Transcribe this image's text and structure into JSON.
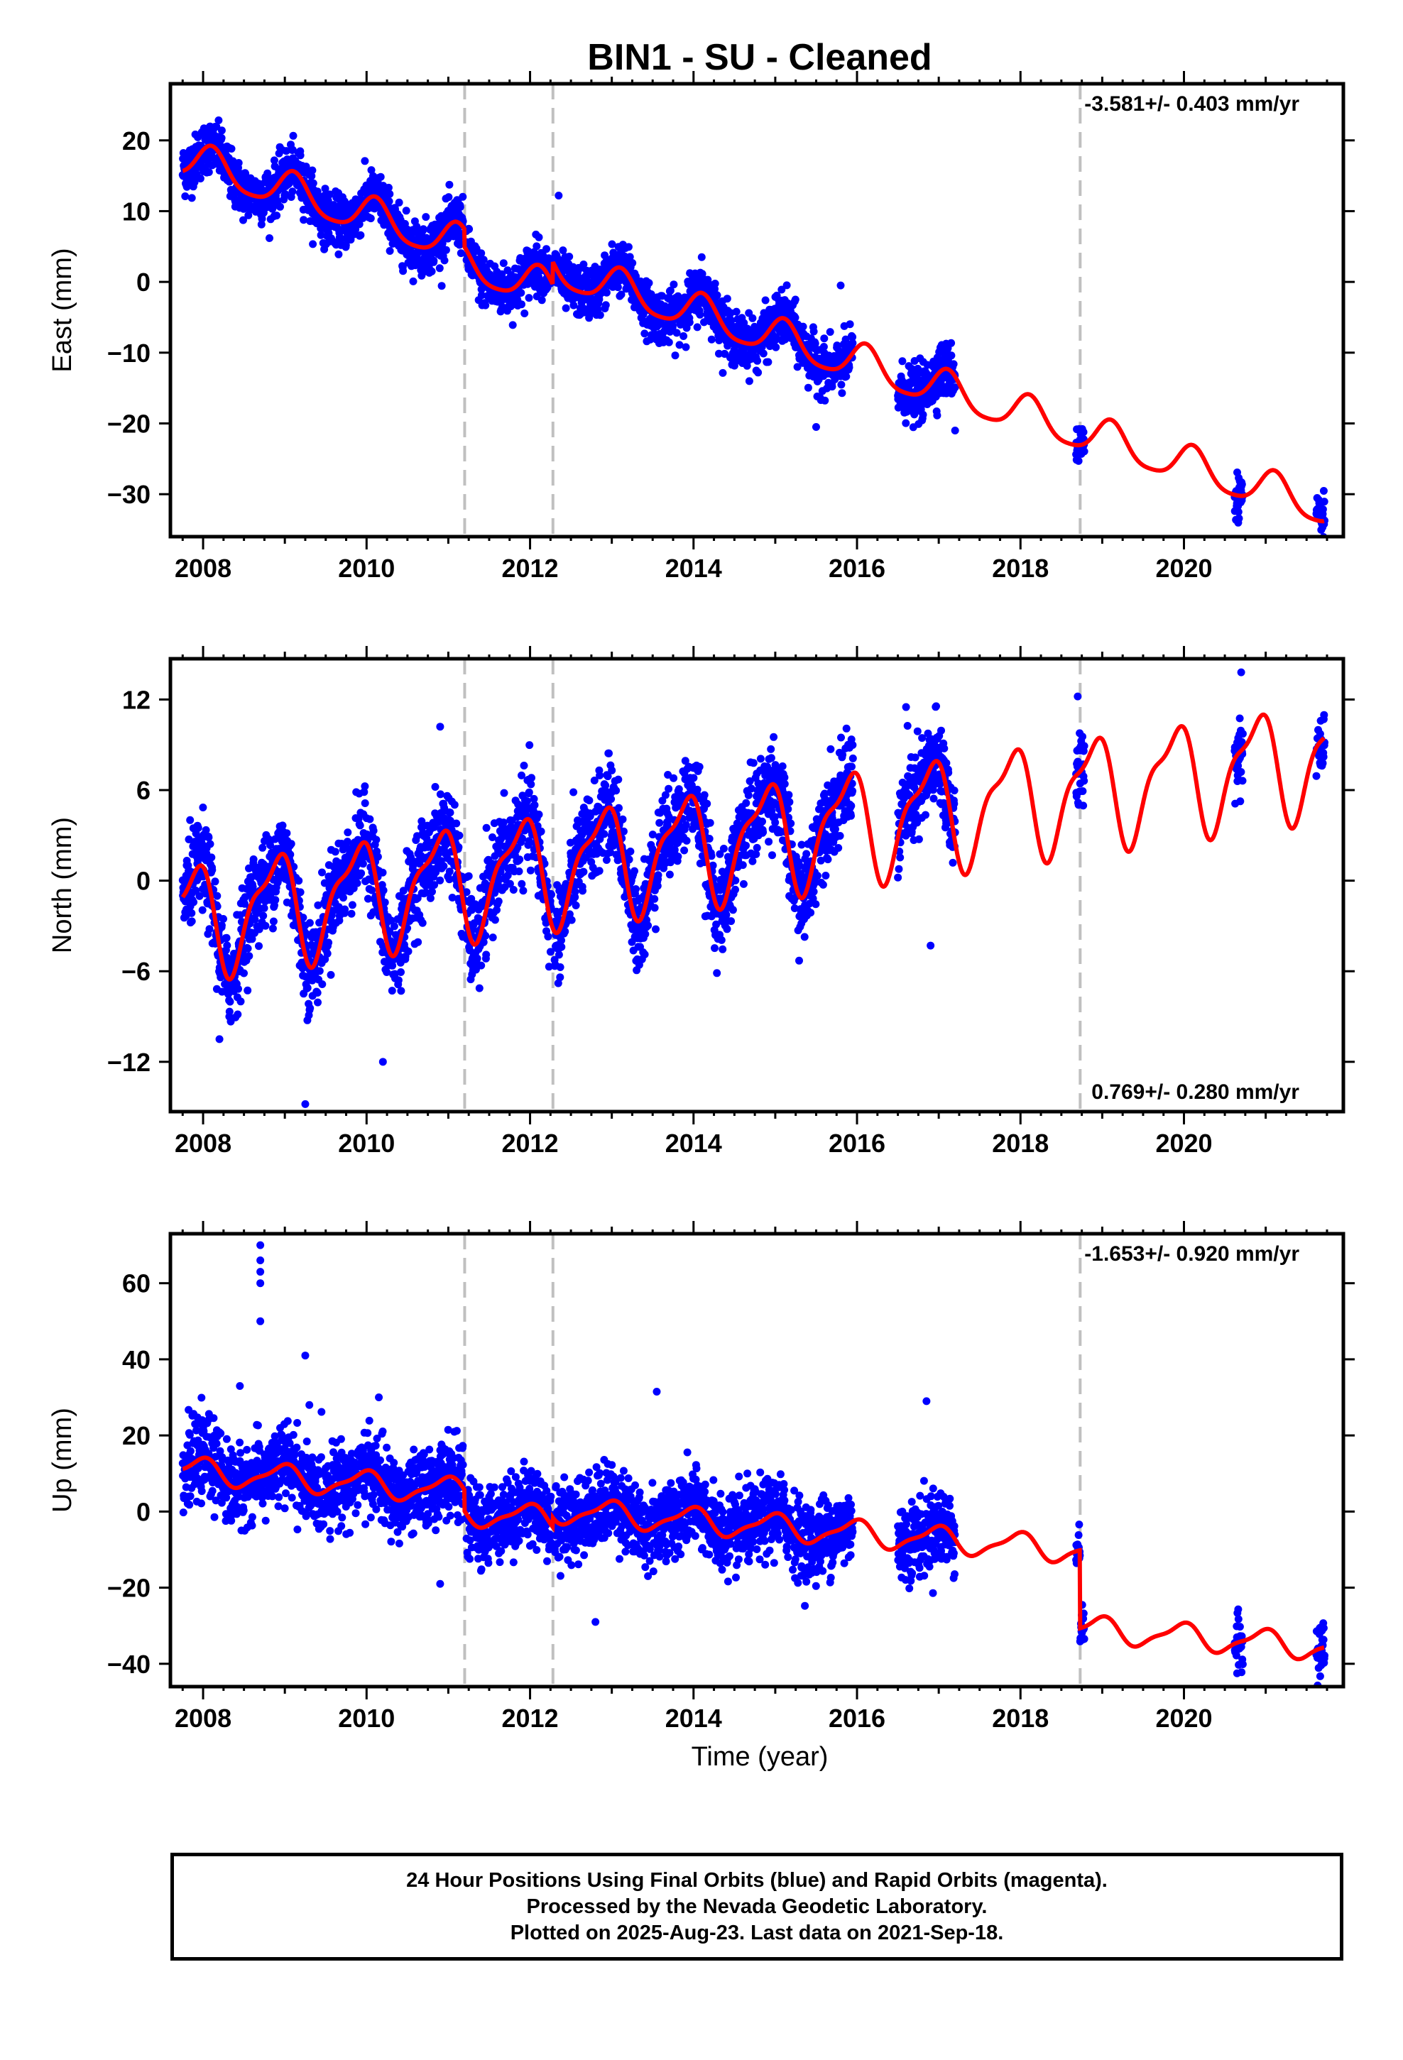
{
  "title": "BIN1  - SU - Cleaned",
  "xlabel": "Time (year)",
  "xticks": [
    2008,
    2010,
    2012,
    2014,
    2016,
    2018,
    2020
  ],
  "xlim": [
    2007.6,
    2021.95
  ],
  "colors": {
    "points": "#0000ff",
    "model": "#ff0000",
    "breaks": "#c0c0c0",
    "frame": "#000000"
  },
  "breaks": [
    2011.2,
    2012.28,
    2018.73
  ],
  "caption": [
    "24 Hour Positions Using Final Orbits (blue) and Rapid Orbits (magenta).",
    "Processed by the Nevada Geodetic Laboratory.",
    "Plotted on 2025-Aug-23. Last data on 2021-Sep-18."
  ],
  "chart_data": [
    {
      "type": "scatter",
      "name": "East",
      "ylabel": "East (mm)",
      "ylim": [
        -36,
        28
      ],
      "yticks": [
        20,
        10,
        0,
        -10,
        -20,
        -30
      ],
      "rate": "-3.581+/- 0.403 mm/yr",
      "rate_position": "top-right",
      "grid": false,
      "model": {
        "velocity": -3.581,
        "offset": 16.5,
        "ref_year": 2008.0,
        "annual_amp": 2.6,
        "annual_phase": 0.9,
        "semi_amp": 0.5,
        "semi_phase": 0.2,
        "steps": [
          {
            "year": 2011.2,
            "size": -2.5
          },
          {
            "year": 2012.28,
            "size": 3.2
          }
        ]
      },
      "segments": [
        {
          "start": 2007.75,
          "end": 2011.18,
          "noise": 1.8
        },
        {
          "start": 2011.22,
          "end": 2012.26,
          "noise": 1.8
        },
        {
          "start": 2012.3,
          "end": 2015.95,
          "noise": 1.8
        },
        {
          "start": 2016.5,
          "end": 2017.2,
          "noise": 1.9
        },
        {
          "start": 2018.68,
          "end": 2018.78,
          "noise": 1.5
        },
        {
          "start": 2020.62,
          "end": 2020.72,
          "noise": 1.5
        },
        {
          "start": 2021.62,
          "end": 2021.72,
          "noise": 1.5
        }
      ],
      "outliers": [
        [
          2012.35,
          12.2
        ],
        [
          2014.1,
          3.5
        ],
        [
          2015.8,
          -0.5
        ],
        [
          2015.5,
          -20.5
        ],
        [
          2017.2,
          -21
        ]
      ]
    },
    {
      "type": "scatter",
      "name": "North",
      "ylabel": "North (mm)",
      "ylim": [
        -15.3,
        14.7
      ],
      "yticks": [
        12,
        6,
        0,
        -6,
        -12
      ],
      "rate": "0.769+/- 0.280 mm/yr",
      "rate_position": "bottom-right",
      "grid": false,
      "model": {
        "velocity": 0.769,
        "offset": -2.4,
        "ref_year": 2008.0,
        "annual_amp": 3.4,
        "annual_phase": 2.4,
        "semi_amp": 1.2,
        "semi_phase": 1.0,
        "steps": []
      },
      "segments": [
        {
          "start": 2007.75,
          "end": 2011.18,
          "noise": 1.5
        },
        {
          "start": 2011.22,
          "end": 2012.26,
          "noise": 1.5
        },
        {
          "start": 2012.3,
          "end": 2015.95,
          "noise": 1.5
        },
        {
          "start": 2016.5,
          "end": 2017.2,
          "noise": 1.6
        },
        {
          "start": 2018.68,
          "end": 2018.78,
          "noise": 1.2
        },
        {
          "start": 2020.62,
          "end": 2020.72,
          "noise": 1.2
        },
        {
          "start": 2021.62,
          "end": 2021.72,
          "noise": 1.2
        }
      ],
      "outliers": [
        [
          2010.9,
          10.2
        ],
        [
          2009.25,
          -14.8
        ],
        [
          2010.2,
          -12
        ],
        [
          2008.2,
          -10.5
        ],
        [
          2016.6,
          11.5
        ],
        [
          2018.7,
          12.2
        ],
        [
          2020.7,
          13.8
        ],
        [
          2016.9,
          -4.3
        ]
      ]
    },
    {
      "type": "scatter",
      "name": "Up",
      "ylabel": "Up (mm)",
      "ylim": [
        -46,
        73
      ],
      "yticks": [
        60,
        40,
        20,
        0,
        -20,
        -40
      ],
      "rate": "-1.653+/- 0.920 mm/yr",
      "rate_position": "top-right",
      "grid": false,
      "model": {
        "velocity": -1.653,
        "offset": 10.5,
        "ref_year": 2008.0,
        "annual_amp": 3.2,
        "annual_phase": 1.8,
        "semi_amp": 1.0,
        "semi_phase": 0.5,
        "steps": [
          {
            "year": 2011.2,
            "size": -5.5
          },
          {
            "year": 2012.28,
            "size": 2.5
          },
          {
            "year": 2018.73,
            "size": -20.5
          }
        ]
      },
      "segments": [
        {
          "start": 2007.75,
          "end": 2011.18,
          "noise": 5.0
        },
        {
          "start": 2011.22,
          "end": 2012.26,
          "noise": 5.0
        },
        {
          "start": 2012.3,
          "end": 2015.95,
          "noise": 5.0
        },
        {
          "start": 2016.5,
          "end": 2017.2,
          "noise": 5.0
        },
        {
          "start": 2018.68,
          "end": 2018.78,
          "noise": 2.5
        },
        {
          "start": 2020.62,
          "end": 2020.72,
          "noise": 3.5
        },
        {
          "start": 2021.62,
          "end": 2021.72,
          "noise": 3.5
        }
      ],
      "outliers": [
        [
          2008.7,
          70
        ],
        [
          2008.7,
          66
        ],
        [
          2008.7,
          63
        ],
        [
          2008.7,
          60
        ],
        [
          2008.7,
          50
        ],
        [
          2009.25,
          41
        ],
        [
          2009.3,
          28
        ],
        [
          2008.45,
          33
        ],
        [
          2010.15,
          30
        ],
        [
          2013.55,
          31.5
        ],
        [
          2016.85,
          29
        ],
        [
          2010.9,
          -19
        ],
        [
          2012.8,
          -29
        ],
        [
          2020.65,
          -42.5
        ]
      ]
    }
  ]
}
